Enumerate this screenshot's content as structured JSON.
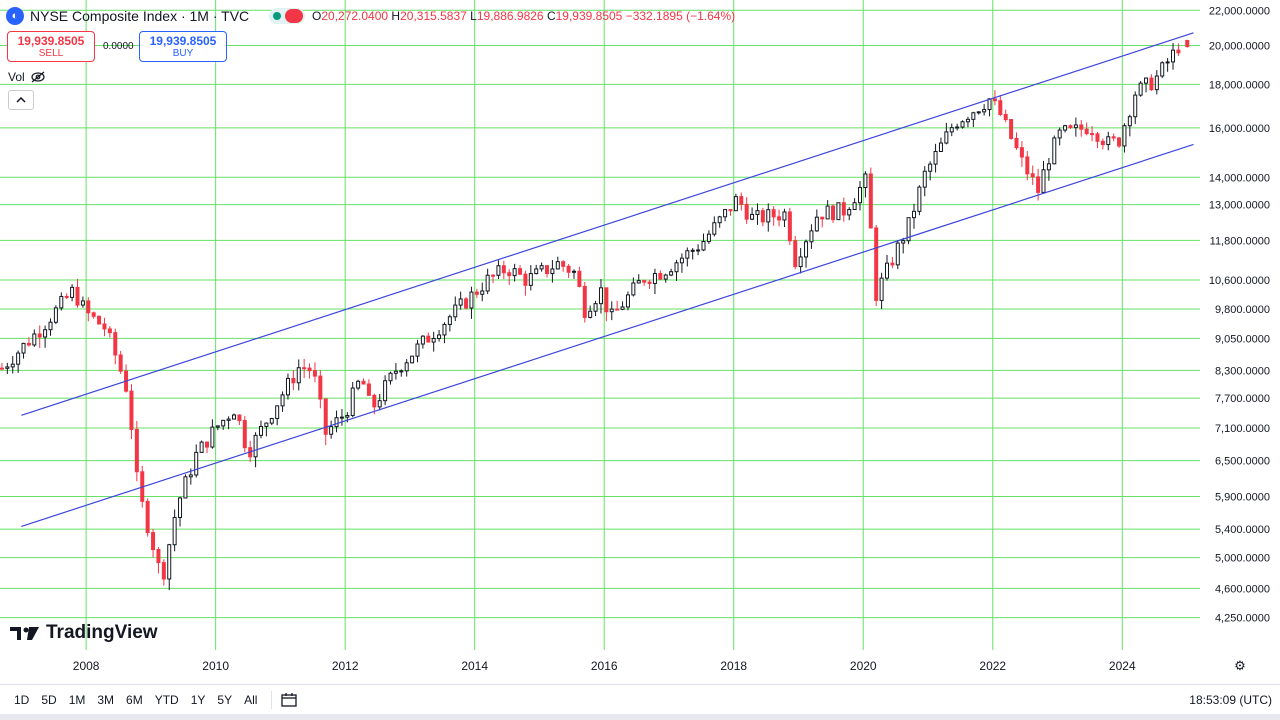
{
  "header": {
    "title": "NYSE Composite Index · 1M · TVC",
    "ohlc": {
      "o_label": "O",
      "o": "20,272.0400",
      "h_label": "H",
      "h": "20,315.5837",
      "l_label": "L",
      "l": "19,886.9826",
      "c_label": "C",
      "c": "19,939.8505",
      "change": "−332.1895 (−1.64%)"
    }
  },
  "trade": {
    "sell_price": "19,939.8505",
    "sell_label": "SELL",
    "spread": "0.0000",
    "buy_price": "19,939.8505",
    "buy_label": "BUY"
  },
  "vol_label": "Vol",
  "watermark": "TradingView",
  "range_buttons": [
    "1D",
    "5D",
    "1M",
    "3M",
    "6M",
    "YTD",
    "1Y",
    "5Y",
    "All"
  ],
  "clock": "18:53:09 (UTC)",
  "colors": {
    "up": "#131722",
    "down": "#f23645",
    "grid": "#66e066",
    "channel": "#3c46dc"
  },
  "icons": [
    "logo-icon",
    "status-icon",
    "eye-off-icon",
    "chevron-up-icon",
    "tradingview-logo-icon",
    "gear-icon",
    "calendar-range-icon"
  ],
  "chart_data": {
    "type": "candlestick",
    "y_scale": "log",
    "ylim": [
      4000,
      22500
    ],
    "y_ticks": [
      {
        "v": 22000,
        "label": "22,000.0000"
      },
      {
        "v": 20000,
        "label": "20,000.0000"
      },
      {
        "v": 18000,
        "label": "18,000.0000"
      },
      {
        "v": 16000,
        "label": "16,000.0000"
      },
      {
        "v": 14000,
        "label": "14,000.0000"
      },
      {
        "v": 13000,
        "label": "13,000.0000"
      },
      {
        "v": 11800,
        "label": "11,800.0000"
      },
      {
        "v": 10600,
        "label": "10,600.0000"
      },
      {
        "v": 9800,
        "label": "9,800.0000"
      },
      {
        "v": 9050,
        "label": "9,050.0000"
      },
      {
        "v": 8300,
        "label": "8,300.0000"
      },
      {
        "v": 7700,
        "label": "7,700.0000"
      },
      {
        "v": 7100,
        "label": "7,100.0000"
      },
      {
        "v": 6500,
        "label": "6,500.0000"
      },
      {
        "v": 5900,
        "label": "5,900.0000"
      },
      {
        "v": 5400,
        "label": "5,400.0000"
      },
      {
        "v": 5000,
        "label": "5,000.0000"
      },
      {
        "v": 4600,
        "label": "4,600.0000"
      },
      {
        "v": 4250,
        "label": "4,250.0000"
      }
    ],
    "x_ticks": [
      {
        "t": 2008.0,
        "label": "2008"
      },
      {
        "t": 2010.0,
        "label": "2010"
      },
      {
        "t": 2012.0,
        "label": "2012"
      },
      {
        "t": 2014.0,
        "label": "2014"
      },
      {
        "t": 2016.0,
        "label": "2016"
      },
      {
        "t": 2018.0,
        "label": "2018"
      },
      {
        "t": 2020.0,
        "label": "2020"
      },
      {
        "t": 2022.0,
        "label": "2022"
      },
      {
        "t": 2024.0,
        "label": "2024"
      }
    ],
    "xlim": [
      2006.67,
      2025.2
    ],
    "grid": true,
    "anchors": [
      [
        2006.7,
        8350
      ],
      [
        2007.3,
        9300
      ],
      [
        2007.8,
        10300
      ],
      [
        2008.0,
        9700
      ],
      [
        2008.3,
        9300
      ],
      [
        2008.5,
        8450
      ],
      [
        2008.65,
        7800
      ],
      [
        2008.8,
        6000
      ],
      [
        2009.0,
        5300
      ],
      [
        2009.17,
        4700
      ],
      [
        2009.4,
        5750
      ],
      [
        2009.7,
        6600
      ],
      [
        2010.0,
        7100
      ],
      [
        2010.3,
        7500
      ],
      [
        2010.5,
        6650
      ],
      [
        2010.9,
        7500
      ],
      [
        2011.3,
        8400
      ],
      [
        2011.5,
        8300
      ],
      [
        2011.7,
        7000
      ],
      [
        2012.0,
        7400
      ],
      [
        2012.25,
        8150
      ],
      [
        2012.4,
        7450
      ],
      [
        2012.8,
        8350
      ],
      [
        2013.3,
        9100
      ],
      [
        2013.8,
        9900
      ],
      [
        2014.2,
        10600
      ],
      [
        2014.5,
        10950
      ],
      [
        2014.8,
        10600
      ],
      [
        2015.3,
        11100
      ],
      [
        2015.55,
        10800
      ],
      [
        2015.7,
        9800
      ],
      [
        2015.95,
        10300
      ],
      [
        2016.1,
        9550
      ],
      [
        2016.6,
        10650
      ],
      [
        2016.9,
        10850
      ],
      [
        2017.5,
        11700
      ],
      [
        2018.05,
        13200
      ],
      [
        2018.3,
        12500
      ],
      [
        2018.8,
        12700
      ],
      [
        2018.95,
        11200
      ],
      [
        2019.3,
        12700
      ],
      [
        2019.7,
        12800
      ],
      [
        2020.05,
        13900
      ],
      [
        2020.2,
        10200
      ],
      [
        2020.3,
        10600
      ],
      [
        2020.7,
        12300
      ],
      [
        2020.95,
        14100
      ],
      [
        2021.4,
        16200
      ],
      [
        2021.95,
        17300
      ],
      [
        2022.1,
        16700
      ],
      [
        2022.45,
        14600
      ],
      [
        2022.7,
        13500
      ],
      [
        2022.85,
        14700
      ],
      [
        2023.05,
        15800
      ],
      [
        2023.2,
        15800
      ],
      [
        2023.5,
        16100
      ],
      [
        2023.8,
        15300
      ],
      [
        2023.95,
        15500
      ],
      [
        2024.2,
        17600
      ],
      [
        2024.5,
        18200
      ],
      [
        2024.8,
        19600
      ],
      [
        2024.92,
        20272
      ]
    ],
    "last_candle": {
      "o": 20272.04,
      "h": 20315.5837,
      "l": 19886.9826,
      "c": 19939.8505
    },
    "channel": {
      "upper": [
        [
          2007.0,
          7350
        ],
        [
          2025.1,
          20700
        ]
      ],
      "lower": [
        [
          2007.0,
          5440
        ],
        [
          2025.1,
          15300
        ]
      ]
    }
  }
}
